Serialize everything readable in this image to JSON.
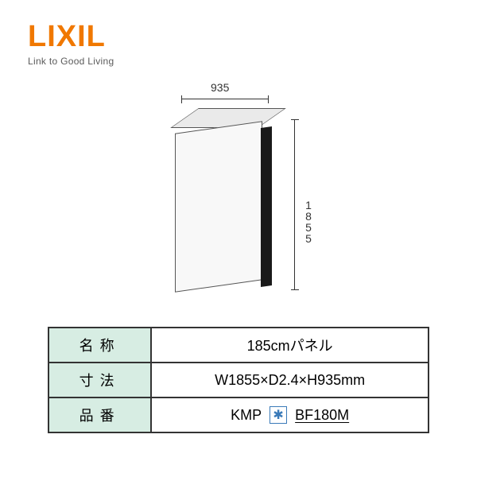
{
  "logo": {
    "brand": "LIXIL",
    "tagline": "Link to Good Living",
    "brand_color": "#f07800"
  },
  "diagram": {
    "width_label": "935",
    "height_label": "1855",
    "panel_fill": "#f8f8f8",
    "panel_stroke": "#555555",
    "side_fill": "#1a1a1a"
  },
  "spec_table": {
    "header_bg": "#d7ede3",
    "border_color": "#333333",
    "rows": [
      {
        "label": "名称",
        "value": "185cmパネル"
      },
      {
        "label": "寸法",
        "value": "W1855×D2.4×H935mm"
      },
      {
        "label": "品番",
        "prefix": "KMP",
        "code": "BF180M"
      }
    ]
  }
}
